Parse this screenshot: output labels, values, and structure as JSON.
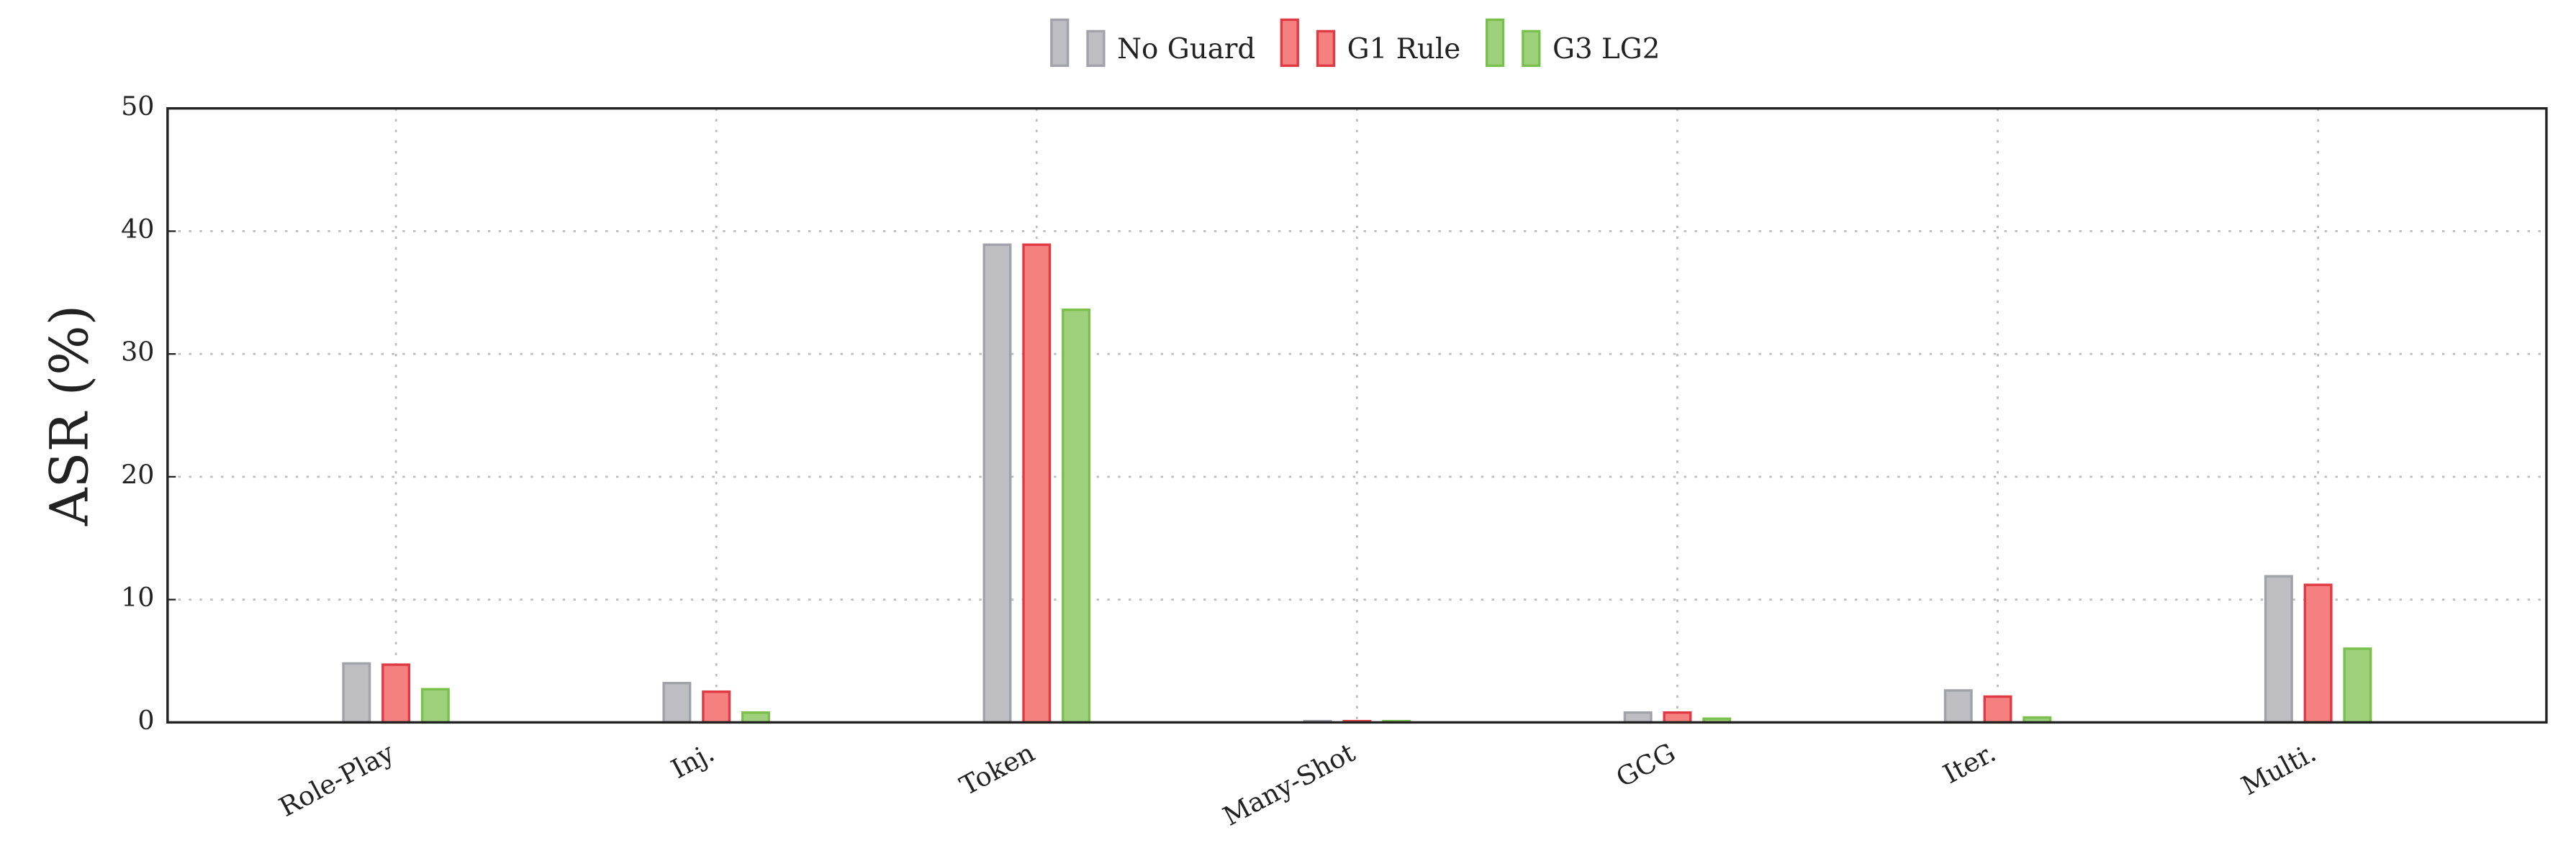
{
  "chart_data": {
    "type": "bar",
    "y_label": "ASR (%)",
    "categories": [
      "Role-Play",
      "Inj.",
      "Token",
      "Many-Shot",
      "GCG",
      "Iter.",
      "Multi."
    ],
    "series": [
      {
        "name": "No Guard",
        "color": "#bdbdc2",
        "stroke": "#a2a2aa",
        "values": [
          4.8,
          3.2,
          38.9,
          0.1,
          0.8,
          2.6,
          11.9
        ]
      },
      {
        "name": "G1 Rule",
        "color": "#f4807f",
        "stroke": "#e03a45",
        "values": [
          4.7,
          2.5,
          38.9,
          0.1,
          0.8,
          2.1,
          11.2
        ]
      },
      {
        "name": "G3 LG2",
        "color": "#9fd07b",
        "stroke": "#79c04c",
        "values": [
          2.7,
          0.8,
          33.6,
          0.1,
          0.3,
          0.4,
          6.0
        ]
      }
    ],
    "ylim": [
      0,
      50
    ],
    "yticks": [
      0,
      10,
      20,
      30,
      40,
      50
    ],
    "grid": true,
    "legend": "top"
  }
}
